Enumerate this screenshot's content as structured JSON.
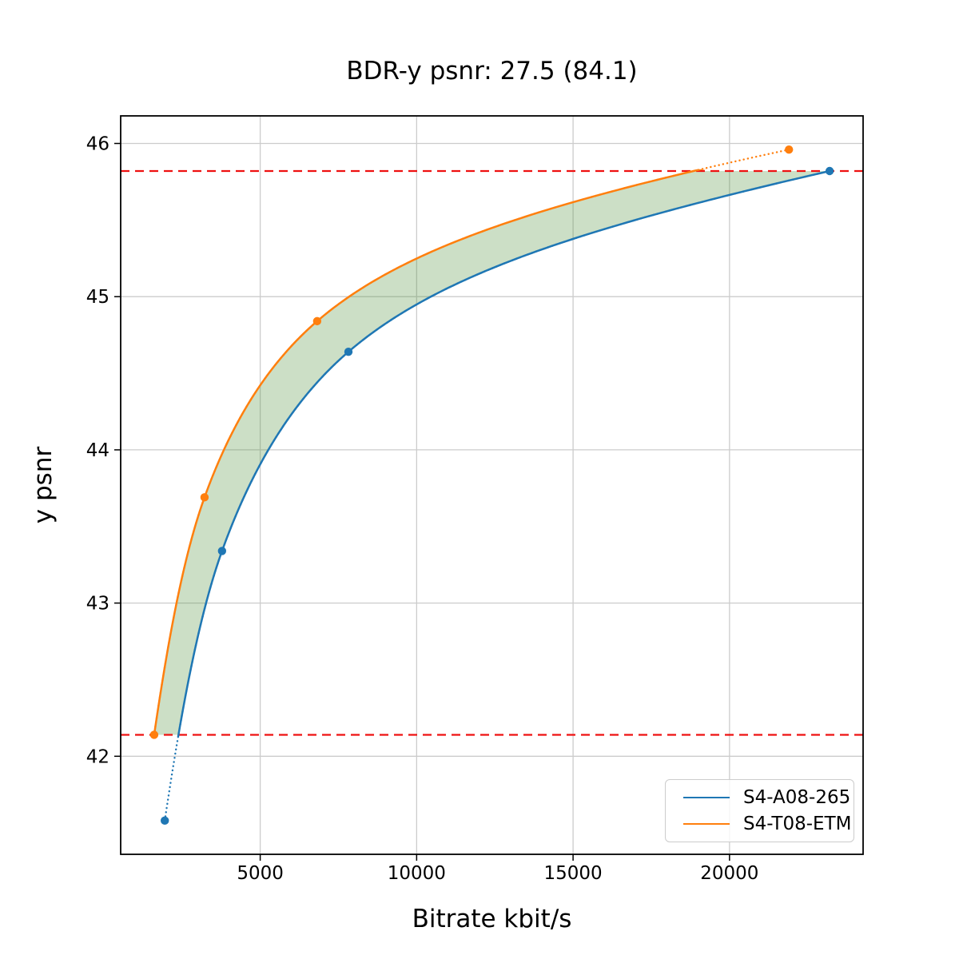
{
  "title": "BDR-y psnr: 27.5 (84.1)",
  "chart_data": {
    "type": "line",
    "title": "BDR-y psnr: 27.5 (84.1)",
    "xlabel": "Bitrate kbit/s",
    "ylabel": "y psnr",
    "xlim": [
      540,
      24270
    ],
    "ylim": [
      41.36,
      46.18
    ],
    "xticks": [
      5000,
      10000,
      15000,
      20000
    ],
    "yticks": [
      46,
      45,
      44,
      43,
      42
    ],
    "grid": true,
    "grid_color": "#cccccc",
    "legend_position": "lower right",
    "hlines": [
      {
        "y": 45.82,
        "color": "#ee1111",
        "style": "dashed"
      },
      {
        "y": 42.14,
        "color": "#ee1111",
        "style": "dashed"
      }
    ],
    "band": {
      "ymin": 42.14,
      "ymax": 45.82,
      "fill": "rgba(85,150,65,0.30)"
    },
    "series": [
      {
        "name": "S4-A08-265",
        "color": "#1f77b4",
        "x": [
          1950,
          3780,
          7820,
          23200
        ],
        "y": [
          41.58,
          43.34,
          44.64,
          45.82
        ]
      },
      {
        "name": "S4-T08-ETM",
        "color": "#ff7f0e",
        "x": [
          1610,
          3220,
          6820,
          21900
        ],
        "y": [
          42.14,
          43.69,
          44.84,
          45.96
        ]
      }
    ]
  }
}
